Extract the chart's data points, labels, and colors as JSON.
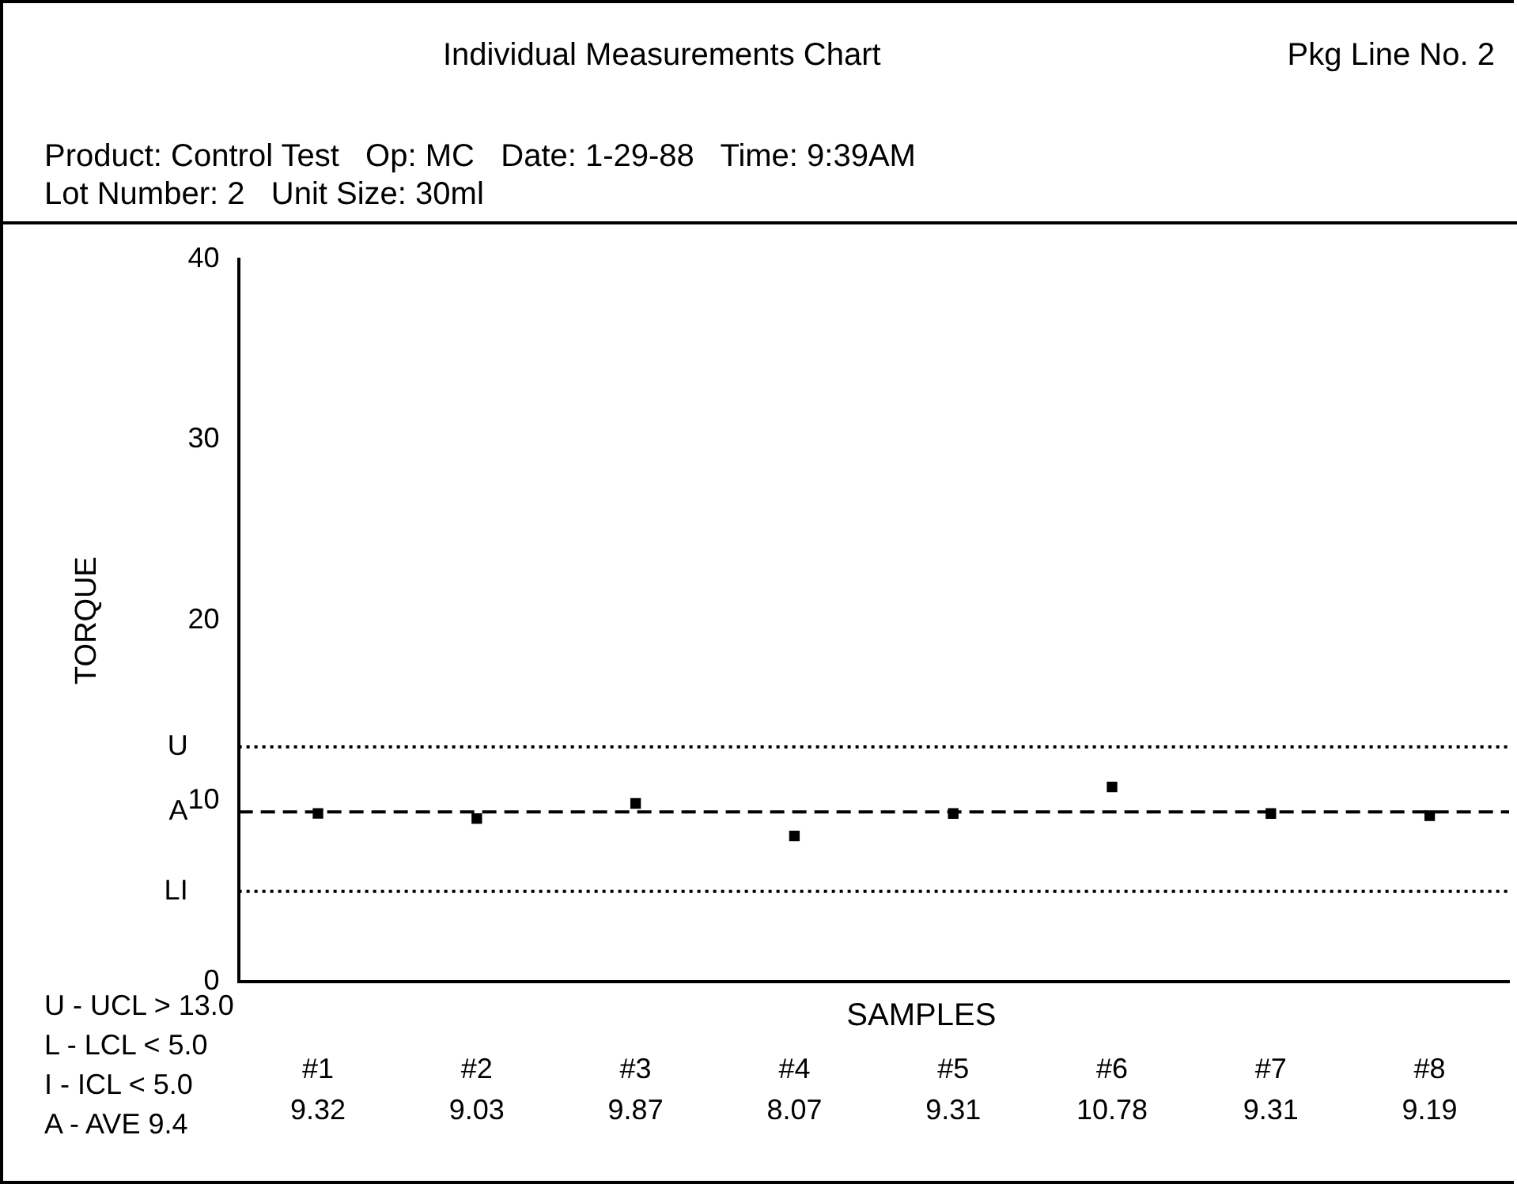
{
  "chart_data": {
    "type": "scatter",
    "title": "Individual Measurements Chart",
    "subtitle": "Product: Control Test   Op: MC   Date: 1-29-88   Time: 9:39AM",
    "xlabel": "SAMPLES",
    "ylabel": "TORQUE",
    "annotations": [
      "Pkg Line No. 2",
      "Lot Number: 2   Unit Size: 30ml",
      "U - UCL > 13.0",
      "L - LCL < 5.0",
      "I - ICL < 5.0",
      "A - AVE 9.4"
    ],
    "categories": [
      "#1",
      "#2",
      "#3",
      "#4",
      "#5",
      "#6",
      "#7",
      "#8"
    ],
    "series": [
      {
        "color": "#000000",
        "values": [
          9.32,
          9.03,
          9.87,
          8.07,
          9.31,
          10.78,
          9.31,
          9.19
        ]
      }
    ],
    "ylim": [
      0,
      40
    ],
    "yticks": [
      0,
      10,
      20,
      30,
      40
    ],
    "ref_lines": [
      {
        "axis": "y",
        "value": 13.0,
        "label": "U",
        "line_style": "dotted",
        "color": "#000000"
      },
      {
        "axis": "y",
        "value": 9.4,
        "label": "A",
        "line_style": "dashed",
        "color": "#000000"
      },
      {
        "axis": "y",
        "value": 5.0,
        "label": "LI",
        "line_style": "dotted",
        "color": "#000000"
      }
    ],
    "marker": "square",
    "data_labels": true,
    "grid": false,
    "legend": false
  }
}
